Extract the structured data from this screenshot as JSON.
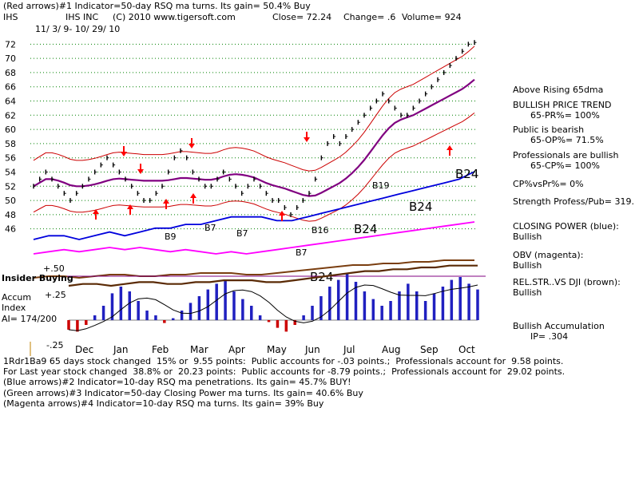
{
  "header": {
    "line1": "(Red arrows)#1 Indicator=50-day RSQ ma turns. Its gain= 50.4% Buy",
    "ticker": "IHS",
    "company": "IHS INC",
    "copyright": "(C) 2010 www.tigersoft.com",
    "close": "Close= 72.24",
    "change": "Change= .6",
    "volume": "Volume= 924",
    "date_range": "11/ 3/ 9- 10/ 29/ 10"
  },
  "sidebar": [
    {
      "title": "Above Rising 65dma",
      "detail": ""
    },
    {
      "title": "BULLISH PRICE TREND",
      "detail": "65-PR%= 100%"
    },
    {
      "title": "Public is bearish",
      "detail": "65-OP%= 71.5%"
    },
    {
      "title": "Professionals are bullish",
      "detail": "65-CP%= 100%"
    },
    {
      "title": "CP%vsPr%= 0%",
      "detail": ""
    },
    {
      "title": "Strength Profess/Pub= 319.",
      "detail": ""
    },
    {
      "title": "CLOSING POWER (blue):",
      "detail": "Bullish"
    },
    {
      "title": "OBV (magenta):",
      "detail": "Bullish"
    },
    {
      "title": "REL.STR..VS DJI (brown):",
      "detail": "Bullish"
    },
    {
      "title": "Bullish Accumulation",
      "detail": "IP= .304"
    }
  ],
  "footer": [
    "1Rdr1Ba9 65 days stock changed  15% or  9.55 points:  Public accounts for -.03 points.;  Professionals account for  9.58 points.",
    "For Last year stock changed  38.8% or  20.23 points:  Public accounts for -8.79 points.;  Professionals account for  29.02 points.",
    "(Blue arrows)#2 Indicator=10-day RSQ ma penetrations. Its gain= 45.7% BUY!",
    "(Green arrows)#3 Indicator=50-day Closing Power ma turns. Its gain= 40.6% Buy",
    "(Magenta arrows)#4 Indicator=10-day RSQ ma turns. Its gain= 39% Buy"
  ],
  "lower_panel": {
    "insider_label": "Insider Buying",
    "accum_label_1": "Accum",
    "accum_label_2": "Index",
    "ai_label": "AI= 174/200",
    "top_level": "+.50",
    "mid_level": "+.25",
    "bottom_level": "-.25"
  },
  "colors": {
    "price": "#000000",
    "bands": "#cc0000",
    "ma": "#800080",
    "closing_power": "#0000dd",
    "obv": "#ff00ff",
    "relstr": "#7a3e10",
    "accum_pos": "#2020c0",
    "accum_neg": "#cc0000",
    "grid": "#008000",
    "red_arrow": "#ff0000"
  },
  "chart_data": {
    "type": "line",
    "title": "IHS INC",
    "x_labels": [
      "Dec",
      "Jan",
      "Feb",
      "Mar",
      "Apr",
      "May",
      "Jun",
      "Jul",
      "Aug",
      "Sep",
      "Oct"
    ],
    "y_ticks": [
      46,
      48,
      50,
      52,
      54,
      56,
      58,
      60,
      62,
      64,
      66,
      68,
      70,
      72
    ],
    "ylim": [
      44.5,
      73.5
    ],
    "price_series": [
      52,
      53,
      54,
      53,
      52,
      51,
      50,
      51,
      52,
      53,
      54,
      55,
      56,
      55,
      54,
      53,
      52,
      51,
      50,
      50,
      51,
      52,
      54,
      56,
      57,
      56,
      54,
      53,
      52,
      52,
      53,
      54,
      53,
      52,
      51,
      52,
      53,
      52,
      51,
      50,
      50,
      49,
      48,
      49,
      50,
      51,
      53,
      56,
      58,
      59,
      58,
      59,
      60,
      61,
      62,
      63,
      64,
      65,
      64,
      63,
      62,
      62,
      63,
      64,
      65,
      66,
      67,
      68,
      69,
      70,
      71,
      72,
      72.24
    ],
    "signal_labels": [
      "B24",
      "B24",
      "B24",
      "B19",
      "B16",
      "B7",
      "B7",
      "B7",
      "B9",
      "B24"
    ],
    "series": [
      {
        "name": "CLOSING POWER (blue)",
        "values": [
          2,
          3,
          3,
          2,
          3,
          4,
          3,
          4,
          5,
          5,
          6,
          6,
          7,
          8,
          8,
          8,
          7,
          7,
          8,
          9,
          10,
          11,
          12,
          13,
          14,
          15,
          16,
          17,
          18,
          20
        ]
      },
      {
        "name": "OBV (magenta)",
        "values": [
          2,
          3,
          4,
          3,
          4,
          5,
          4,
          5,
          4,
          3,
          4,
          3,
          2,
          3,
          2,
          3,
          4,
          5,
          6,
          7,
          8,
          9,
          10,
          11,
          12,
          13,
          14,
          15,
          16,
          17
        ]
      },
      {
        "name": "REL.STR..VS DJI (brown)",
        "values": [
          3,
          4,
          4,
          3,
          4,
          5,
          5,
          4,
          4,
          5,
          5,
          6,
          6,
          6,
          5,
          5,
          6,
          7,
          8,
          9,
          10,
          11,
          11,
          12,
          12,
          13,
          13,
          14,
          14,
          14
        ]
      }
    ],
    "accumulation": [
      -0.1,
      -0.12,
      -0.05,
      0.05,
      0.15,
      0.28,
      0.35,
      0.3,
      0.2,
      0.1,
      0.05,
      -0.03,
      0.02,
      0.1,
      0.18,
      0.25,
      0.32,
      0.38,
      0.42,
      0.3,
      0.22,
      0.15,
      0.05,
      -0.02,
      -0.08,
      -0.12,
      -0.05,
      0.05,
      0.15,
      0.25,
      0.35,
      0.42,
      0.48,
      0.4,
      0.3,
      0.22,
      0.15,
      0.2,
      0.3,
      0.38,
      0.3,
      0.2,
      0.28,
      0.35,
      0.42,
      0.45,
      0.38,
      0.32
    ]
  }
}
